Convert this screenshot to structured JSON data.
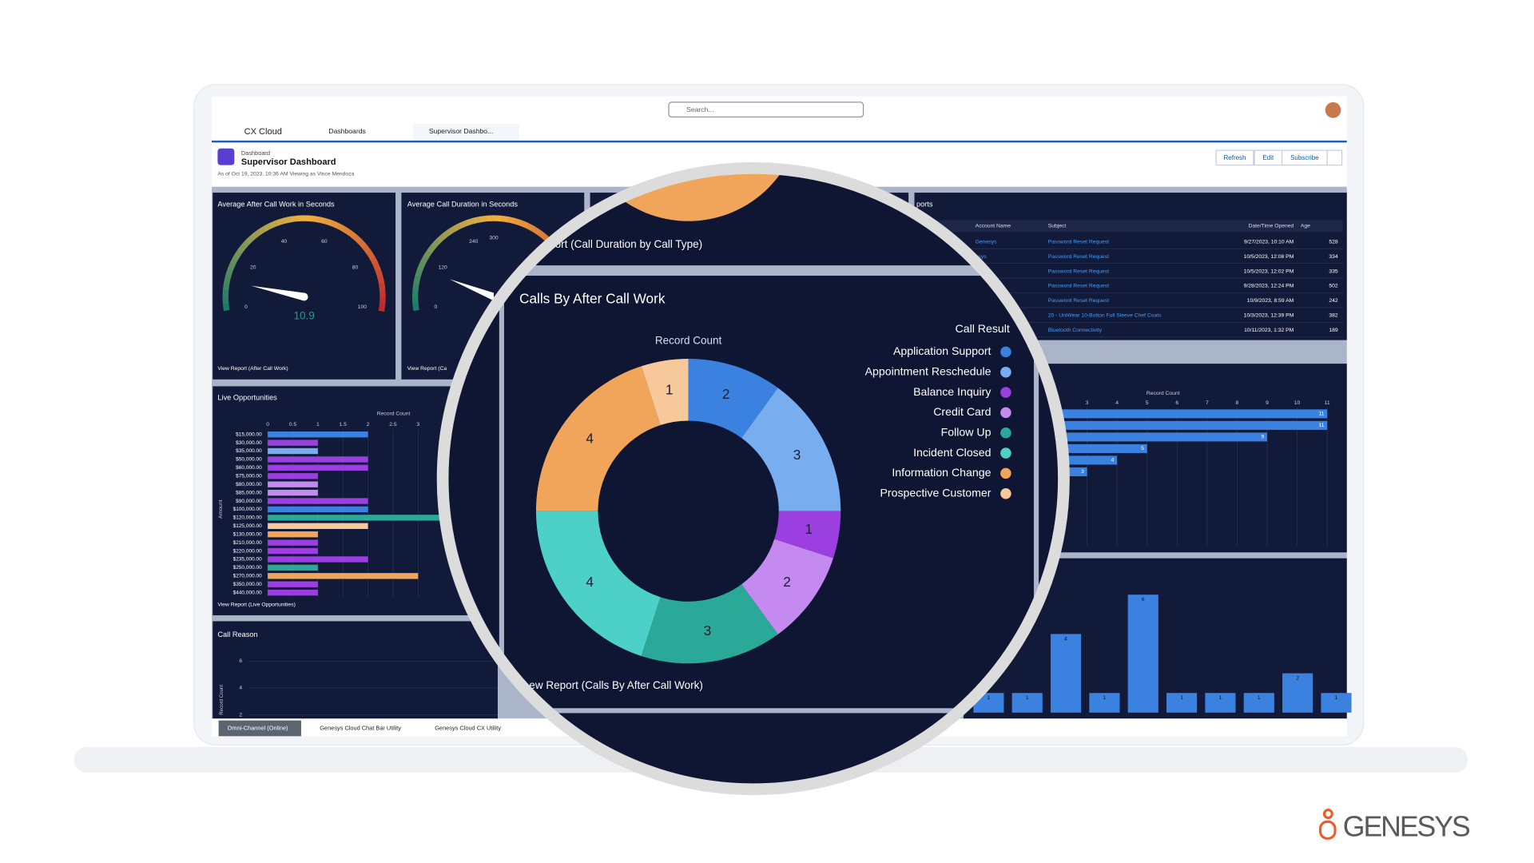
{
  "app": {
    "name": "CX Cloud",
    "search_placeholder": "Search...",
    "nav_item": "Dashboards",
    "tab": "Supervisor Dashbo..."
  },
  "header": {
    "object_type": "Dashboard",
    "title": "Supervisor Dashboard",
    "subtitle": "As of Oct 19, 2023, 10:36 AM Viewing as Vince Mendoza",
    "buttons": [
      "Refresh",
      "Edit",
      "Subscribe"
    ]
  },
  "gauges": [
    {
      "title": "Average After Call Work in Seconds",
      "value": 10.9,
      "lim": [
        0,
        100
      ],
      "ticks": [
        0,
        20,
        40,
        60,
        80,
        100
      ],
      "link": "View Report (After Call Work)"
    },
    {
      "title": "Average Call Duration in Seconds",
      "lim": [
        0,
        600
      ],
      "ticks": [
        0,
        120,
        240,
        300
      ],
      "link": "View Report (Ca"
    }
  ],
  "cases_table": {
    "title": "ports",
    "columns": [
      "Account Name",
      "Subject",
      "Date/Time Opened",
      "Age"
    ],
    "rows": [
      {
        "account": "Genesys",
        "subject": "Password Reset Request",
        "opened": "9/27/2023, 10:10 AM",
        "age": "528"
      },
      {
        "account": "esys",
        "subject": "Password Reset Request",
        "opened": "10/5/2023, 12:08 PM",
        "age": "334"
      },
      {
        "subject": "Password Reset Request",
        "opened": "10/5/2023, 12:02 PM",
        "age": "335"
      },
      {
        "subject": "Password Reset Request",
        "opened": "9/28/2023, 12:24 PM",
        "age": "502"
      },
      {
        "subject": "Password Reset Request",
        "opened": "10/9/2023, 8:59 AM",
        "age": "242"
      },
      {
        "subject": "20 - UniWear 10-Button Full Sleeve Chef Coats",
        "opened": "10/3/2023, 12:39 PM",
        "age": "382"
      },
      {
        "subject": "Bluetooth Connectivity",
        "opened": "10/11/2023, 1:32 PM",
        "age": "189"
      }
    ]
  },
  "live_opportunities": {
    "type": "bar",
    "title": "Live Opportunities",
    "xlabel": "Record Count",
    "ylabel": "Amount",
    "categories": [
      "$15,000.00",
      "$30,000.00",
      "$35,000.00",
      "$50,000.00",
      "$60,000.00",
      "$75,000.00",
      "$80,000.00",
      "$85,000.00",
      "$90,000.00",
      "$100,000.00",
      "$120,000.00",
      "$125,000.00",
      "$130,000.00",
      "$210,000.00",
      "$220,000.00",
      "$235,000.00",
      "$250,000.00",
      "$270,000.00",
      "$350,000.00",
      "$440,000.00"
    ],
    "values": [
      2,
      1,
      1,
      2,
      2,
      1,
      1,
      1,
      2,
      2,
      3.5,
      2,
      1,
      1,
      1,
      2,
      1,
      3,
      1,
      1
    ],
    "colors": [
      "#3b82e0",
      "#9b3fe0",
      "#78aef0",
      "#9b3fe0",
      "#9b3fe0",
      "#9b3fe0",
      "#c48af0",
      "#c48af0",
      "#9b3fe0",
      "#3b82e0",
      "#2aa898",
      "#f7c89a",
      "#f0a55a",
      "#9b3fe0",
      "#9b3fe0",
      "#9b3fe0",
      "#2aa898",
      "#f0a55a",
      "#9b3fe0",
      "#9b3fe0"
    ],
    "xlim": [
      0,
      3.5
    ],
    "xticks": [
      0,
      0.5,
      1,
      1.5,
      2,
      2.5,
      3
    ],
    "link": "View Report (Live Opportunities)"
  },
  "call_reason": {
    "title": "Call Reason",
    "ylabel": "Record Count",
    "ylim": [
      1.5,
      7
    ],
    "yticks": [
      2,
      4,
      6
    ]
  },
  "magnifier": {
    "prev_link": "eport (Call Duration by Call Type)",
    "link": "ew Report (Calls By After Call Work)",
    "chart": {
      "type": "donut",
      "title": "Calls By After Call Work",
      "axis_label": "Record Count",
      "legend_title": "Call Result",
      "categories": [
        "Application Support",
        "Appointment Reschedule",
        "Balance Inquiry",
        "Credit Card",
        "Follow Up",
        "Incident Closed",
        "Information Change",
        "Prospective Customer"
      ],
      "values": [
        2,
        3,
        1,
        2,
        3,
        4,
        4,
        1
      ],
      "colors": [
        "#3b82e0",
        "#78aef0",
        "#9b3fe0",
        "#c48af0",
        "#2aa898",
        "#4cd0c8",
        "#f0a55a",
        "#f7c89a"
      ]
    }
  },
  "bar_panel": {
    "type": "bar",
    "xlabel": "Record Count",
    "values": [
      11,
      11,
      9,
      5,
      4,
      3
    ],
    "color": "#3b82e0",
    "xlim": [
      0,
      11
    ],
    "xticks": [
      3,
      4,
      5,
      6,
      7,
      8,
      9,
      10,
      11
    ]
  },
  "column_panel": {
    "type": "column",
    "values": [
      1,
      1,
      4,
      1,
      6,
      1,
      1,
      1,
      2,
      1
    ],
    "color": "#3b82e0",
    "ylim": [
      0,
      7.5
    ]
  },
  "utility_bar": [
    "Omni-Channel (Online)",
    "Genesys Cloud Chat Bar Utility",
    "Genesys Cloud CX Utility"
  ],
  "brand": "GENESYS"
}
